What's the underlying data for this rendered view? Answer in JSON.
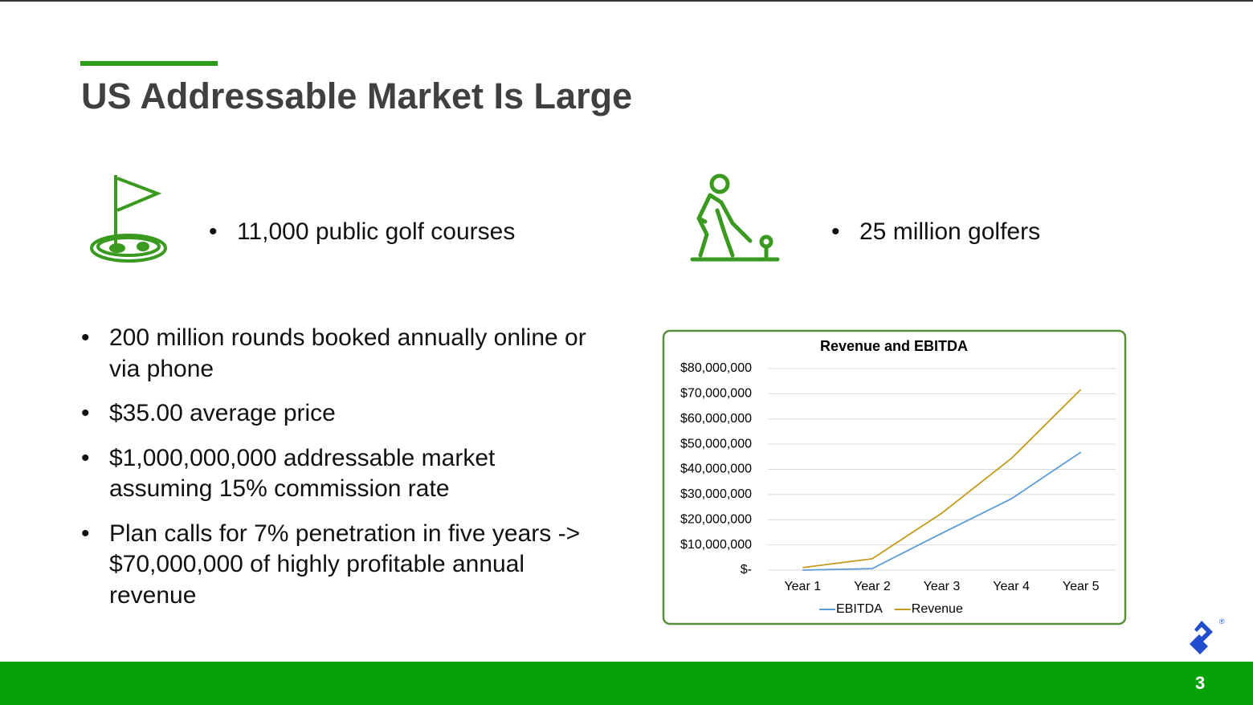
{
  "header": {
    "title": "US Addressable Market Is Large"
  },
  "highlights": [
    "11,000 public golf courses",
    "25 million golfers"
  ],
  "bullets": [
    "200 million rounds booked annually online or via phone",
    "$35.00 average price",
    "$1,000,000,000 addressable market assuming 15% commission rate",
    "Plan calls for 7% penetration in five years -> $70,000,000 of highly profitable annual revenue"
  ],
  "chart_data": {
    "type": "line",
    "title": "Revenue and EBITDA",
    "categories": [
      "Year 1",
      "Year 2",
      "Year 3",
      "Year 4",
      "Year 5"
    ],
    "series": [
      {
        "name": "EBITDA",
        "color": "#5b9bd5",
        "values": [
          0,
          600000,
          14600000,
          28300000,
          46800000
        ]
      },
      {
        "name": "Revenue",
        "color": "#c49a1c",
        "values": [
          1000000,
          4500000,
          22600000,
          44300000,
          71700000
        ]
      }
    ],
    "ylim": [
      0,
      80000000
    ],
    "yticks": [
      {
        "value": 0,
        "label": "$-"
      },
      {
        "value": 10000000,
        "label": "$10,000,000"
      },
      {
        "value": 20000000,
        "label": "$20,000,000"
      },
      {
        "value": 30000000,
        "label": "$30,000,000"
      },
      {
        "value": 40000000,
        "label": "$40,000,000"
      },
      {
        "value": 50000000,
        "label": "$50,000,000"
      },
      {
        "value": 60000000,
        "label": "$60,000,000"
      },
      {
        "value": 70000000,
        "label": "$70,000,000"
      },
      {
        "value": 80000000,
        "label": "$80,000,000"
      }
    ],
    "grid": true,
    "legend": "bottom"
  },
  "footer": {
    "page": "3"
  }
}
